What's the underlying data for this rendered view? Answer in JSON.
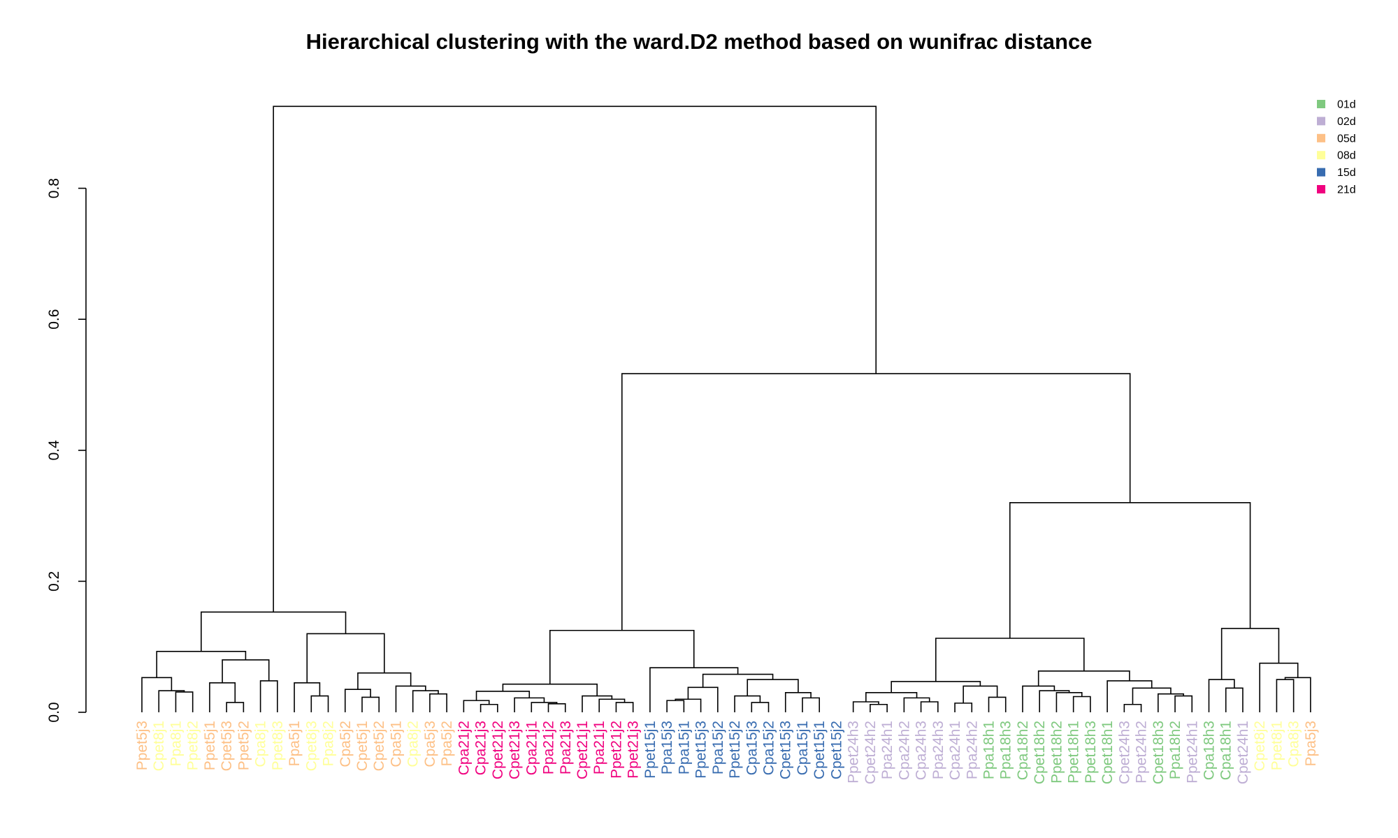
{
  "chart_data": {
    "type": "dendrogram",
    "title": "Hierarchical clustering with the ward.D2 method based on wunifrac distance",
    "xlabel": "",
    "ylabel": "",
    "ylim": [
      0,
      0.92
    ],
    "yticks": [
      "0.0",
      "0.2",
      "0.4",
      "0.6",
      "0.8"
    ],
    "ytick_values": [
      0.0,
      0.2,
      0.4,
      0.6,
      0.8
    ],
    "grid": false,
    "legend_position": "top-right",
    "legend": [
      {
        "label": "01d",
        "color": "#7fc97f"
      },
      {
        "label": "02d",
        "color": "#beaed4"
      },
      {
        "label": "05d",
        "color": "#fdc086"
      },
      {
        "label": "08d",
        "color": "#ffff99"
      },
      {
        "label": "15d",
        "color": "#386cb0"
      },
      {
        "label": "21d",
        "color": "#f0027f"
      }
    ],
    "leaves": [
      {
        "label": "Ppet5j3",
        "group": "05d"
      },
      {
        "label": "Cpet8j1",
        "group": "08d"
      },
      {
        "label": "Ppa8j1",
        "group": "08d"
      },
      {
        "label": "Ppet8j2",
        "group": "08d"
      },
      {
        "label": "Ppet5j1",
        "group": "05d"
      },
      {
        "label": "Cpet5j3",
        "group": "05d"
      },
      {
        "label": "Ppet5j2",
        "group": "05d"
      },
      {
        "label": "Cpa8j1",
        "group": "08d"
      },
      {
        "label": "Ppet8j3",
        "group": "08d"
      },
      {
        "label": "Ppa5j1",
        "group": "05d"
      },
      {
        "label": "Cpet8j3",
        "group": "08d"
      },
      {
        "label": "Ppa8j2",
        "group": "08d"
      },
      {
        "label": "Cpa5j2",
        "group": "05d"
      },
      {
        "label": "Cpet5j1",
        "group": "05d"
      },
      {
        "label": "Cpet5j2",
        "group": "05d"
      },
      {
        "label": "Cpa5j1",
        "group": "05d"
      },
      {
        "label": "Cpa8j2",
        "group": "08d"
      },
      {
        "label": "Cpa5j3",
        "group": "05d"
      },
      {
        "label": "Ppa5j2",
        "group": "05d"
      },
      {
        "label": "Cpa21j2",
        "group": "21d"
      },
      {
        "label": "Cpa21j3",
        "group": "21d"
      },
      {
        "label": "Cpet21j2",
        "group": "21d"
      },
      {
        "label": "Cpet21j3",
        "group": "21d"
      },
      {
        "label": "Cpa21j1",
        "group": "21d"
      },
      {
        "label": "Ppa21j2",
        "group": "21d"
      },
      {
        "label": "Ppa21j3",
        "group": "21d"
      },
      {
        "label": "Cpet21j1",
        "group": "21d"
      },
      {
        "label": "Ppa21j1",
        "group": "21d"
      },
      {
        "label": "Ppet21j2",
        "group": "21d"
      },
      {
        "label": "Ppet21j3",
        "group": "21d"
      },
      {
        "label": "Ppet15j1",
        "group": "15d"
      },
      {
        "label": "Ppa15j3",
        "group": "15d"
      },
      {
        "label": "Ppa15j1",
        "group": "15d"
      },
      {
        "label": "Ppet15j3",
        "group": "15d"
      },
      {
        "label": "Ppa15j2",
        "group": "15d"
      },
      {
        "label": "Ppet15j2",
        "group": "15d"
      },
      {
        "label": "Cpa15j3",
        "group": "15d"
      },
      {
        "label": "Cpa15j2",
        "group": "15d"
      },
      {
        "label": "Cpet15j3",
        "group": "15d"
      },
      {
        "label": "Cpa15j1",
        "group": "15d"
      },
      {
        "label": "Cpet15j1",
        "group": "15d"
      },
      {
        "label": "Cpet15j2",
        "group": "15d"
      },
      {
        "label": "Ppet24h3",
        "group": "02d"
      },
      {
        "label": "Cpet24h2",
        "group": "02d"
      },
      {
        "label": "Ppa24h1",
        "group": "02d"
      },
      {
        "label": "Cpa24h2",
        "group": "02d"
      },
      {
        "label": "Cpa24h3",
        "group": "02d"
      },
      {
        "label": "Ppa24h3",
        "group": "02d"
      },
      {
        "label": "Cpa24h1",
        "group": "02d"
      },
      {
        "label": "Ppa24h2",
        "group": "02d"
      },
      {
        "label": "Ppa18h1",
        "group": "01d"
      },
      {
        "label": "Ppa18h3",
        "group": "01d"
      },
      {
        "label": "Cpa18h2",
        "group": "01d"
      },
      {
        "label": "Cpet18h2",
        "group": "01d"
      },
      {
        "label": "Ppet18h2",
        "group": "01d"
      },
      {
        "label": "Ppet18h1",
        "group": "01d"
      },
      {
        "label": "Ppet18h3",
        "group": "01d"
      },
      {
        "label": "Cpet18h1",
        "group": "01d"
      },
      {
        "label": "Cpet24h3",
        "group": "02d"
      },
      {
        "label": "Ppet24h2",
        "group": "02d"
      },
      {
        "label": "Cpet18h3",
        "group": "01d"
      },
      {
        "label": "Ppa18h2",
        "group": "01d"
      },
      {
        "label": "Ppet24h1",
        "group": "02d"
      },
      {
        "label": "Cpa18h3",
        "group": "01d"
      },
      {
        "label": "Cpa18h1",
        "group": "01d"
      },
      {
        "label": "Cpet24h1",
        "group": "02d"
      },
      {
        "label": "Cpet8j2",
        "group": "08d"
      },
      {
        "label": "Ppet8j1",
        "group": "08d"
      },
      {
        "label": "Cpa8j3",
        "group": "08d"
      },
      {
        "label": "Ppa5j3",
        "group": "05d"
      }
    ],
    "merges": [
      [
        2,
        3,
        0.031
      ],
      [
        1,
        2,
        0.033
      ],
      [
        0,
        1,
        0.053
      ],
      [
        5,
        6,
        0.015
      ],
      [
        4,
        5,
        0.045
      ],
      [
        7,
        8,
        0.048
      ],
      [
        4,
        7,
        0.08
      ],
      [
        0,
        4,
        0.093
      ],
      [
        10,
        11,
        0.025
      ],
      [
        9,
        10,
        0.045
      ],
      [
        13,
        14,
        0.023
      ],
      [
        12,
        13,
        0.035
      ],
      [
        17,
        18,
        0.028
      ],
      [
        16,
        17,
        0.033
      ],
      [
        15,
        16,
        0.04
      ],
      [
        12,
        15,
        0.06
      ],
      [
        9,
        12,
        0.12
      ],
      [
        0,
        9,
        0.153
      ],
      [
        20,
        21,
        0.012
      ],
      [
        19,
        20,
        0.018
      ],
      [
        24,
        25,
        0.013
      ],
      [
        23,
        24,
        0.015
      ],
      [
        22,
        23,
        0.022
      ],
      [
        19,
        22,
        0.032
      ],
      [
        28,
        29,
        0.015
      ],
      [
        27,
        28,
        0.02
      ],
      [
        26,
        27,
        0.025
      ],
      [
        25,
        26,
        0.043
      ],
      [
        19,
        26,
        0.057
      ],
      [
        31,
        32,
        0.018
      ],
      [
        31,
        33,
        0.02
      ],
      [
        31,
        34,
        0.038
      ],
      [
        36,
        37,
        0.015
      ],
      [
        35,
        36,
        0.025
      ],
      [
        39,
        40,
        0.022
      ],
      [
        38,
        39,
        0.03
      ],
      [
        36,
        38,
        0.05
      ],
      [
        31,
        36,
        0.058
      ],
      [
        30,
        31,
        0.068
      ],
      [
        19,
        30,
        0.125
      ],
      [
        43,
        44,
        0.012
      ],
      [
        42,
        43,
        0.016
      ],
      [
        46,
        47,
        0.016
      ],
      [
        45,
        46,
        0.022
      ],
      [
        42,
        45,
        0.03
      ],
      [
        48,
        49,
        0.014
      ],
      [
        50,
        51,
        0.023
      ],
      [
        48,
        50,
        0.04
      ],
      [
        42,
        48,
        0.047
      ],
      [
        55,
        56,
        0.024
      ],
      [
        54,
        55,
        0.03
      ],
      [
        53,
        54,
        0.033
      ],
      [
        52,
        53,
        0.04
      ],
      [
        58,
        59,
        0.012
      ],
      [
        61,
        62,
        0.025
      ],
      [
        60,
        61,
        0.028
      ],
      [
        59,
        60,
        0.037
      ],
      [
        57,
        58,
        0.048
      ],
      [
        52,
        57,
        0.063
      ],
      [
        42,
        52,
        0.113
      ],
      [
        64,
        65,
        0.037
      ],
      [
        63,
        64,
        0.05
      ],
      [
        67,
        68,
        0.05
      ],
      [
        68,
        69,
        0.053
      ],
      [
        66,
        68,
        0.075
      ],
      [
        63,
        66,
        0.128
      ],
      [
        42,
        63,
        0.32
      ],
      [
        19,
        42,
        0.517
      ],
      [
        0,
        19,
        0.925
      ]
    ]
  }
}
